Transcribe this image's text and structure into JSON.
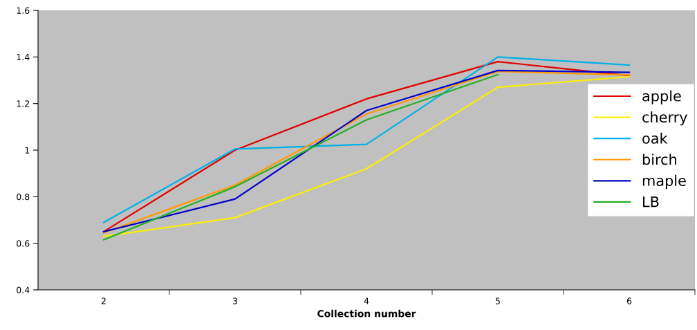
{
  "chart_data": {
    "type": "line",
    "xlabel": "Collection number",
    "categories": [
      "2",
      "3",
      "4",
      "5",
      "6"
    ],
    "series": [
      {
        "name": "apple",
        "color": "#e00000",
        "values": [
          0.65,
          1.0,
          1.22,
          1.38,
          1.32
        ]
      },
      {
        "name": "cherry",
        "color": "#ffee00",
        "values": [
          0.63,
          0.71,
          0.92,
          1.27,
          1.315
        ]
      },
      {
        "name": "oak",
        "color": "#00b0e8",
        "values": [
          0.69,
          1.005,
          1.025,
          1.4,
          1.365
        ]
      },
      {
        "name": "birch",
        "color": "#ff9900",
        "values": [
          0.645,
          0.85,
          1.155,
          1.338,
          1.323
        ]
      },
      {
        "name": "maple",
        "color": "#0000cc",
        "values": [
          0.65,
          0.79,
          1.17,
          1.342,
          1.334
        ]
      },
      {
        "name": "LB",
        "color": "#22b022",
        "values": [
          0.615,
          0.843,
          1.13,
          1.324,
          null
        ]
      }
    ],
    "ylim": [
      0.4,
      1.6
    ],
    "yticks": [
      0.4,
      0.6,
      0.8,
      1,
      1.2,
      1.4,
      1.6
    ],
    "grid": false,
    "legend": "right",
    "marker": "none",
    "line_style": "solid"
  }
}
